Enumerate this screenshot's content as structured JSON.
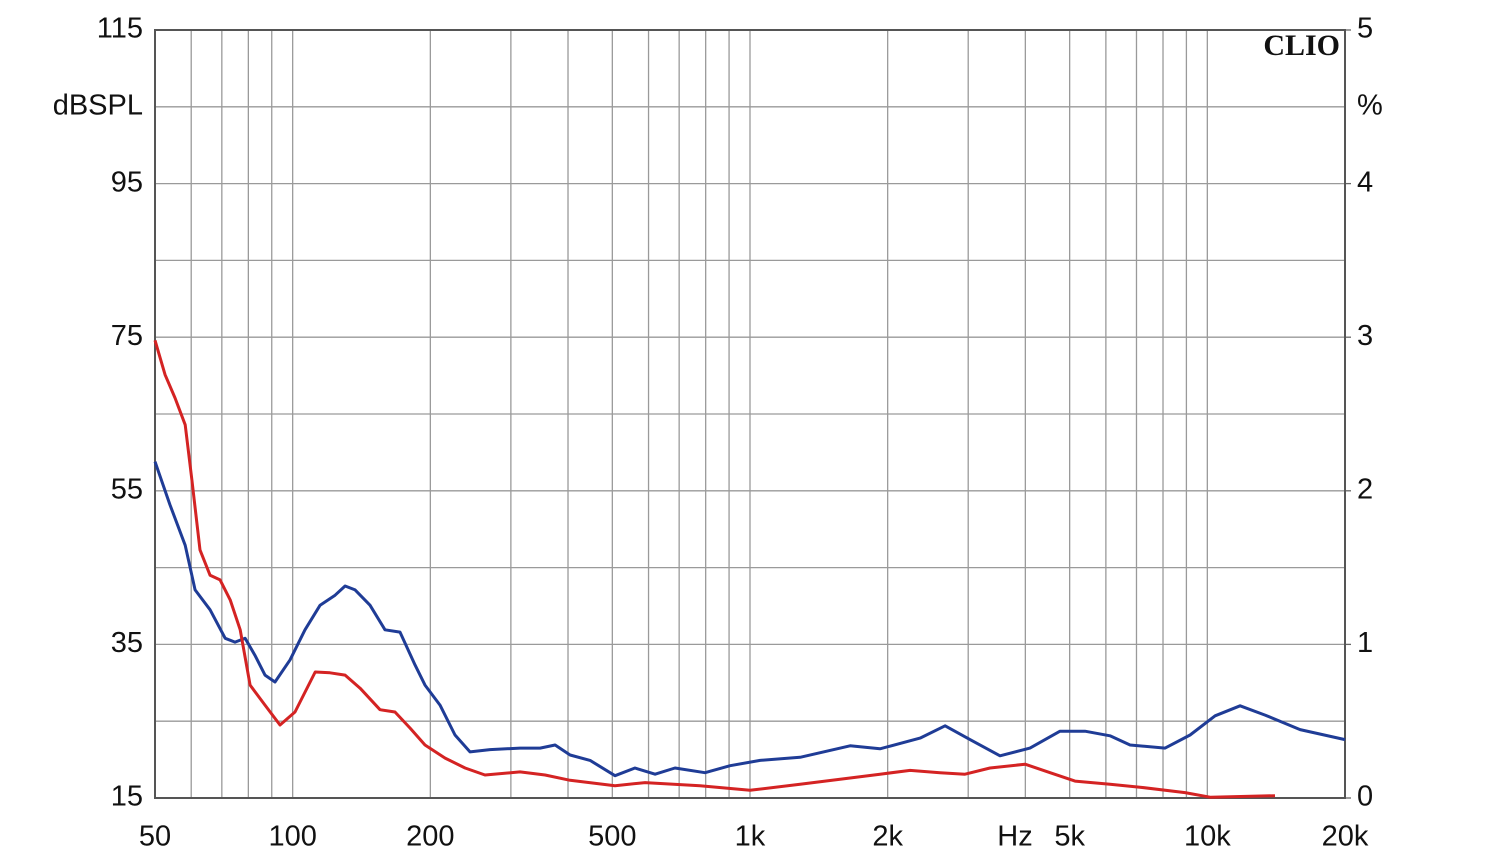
{
  "chart_data": {
    "type": "line",
    "brand": "CLIO",
    "xlabel": "Hz",
    "ylabel": "dBSPL",
    "y2label": "%",
    "xscale": "log",
    "grid": true,
    "xlim": [
      50,
      20000
    ],
    "ylim": [
      15,
      115
    ],
    "y2lim": [
      0,
      5
    ],
    "xticks": [
      50,
      100,
      200,
      500,
      {
        "value": 1000,
        "label": "1k"
      },
      {
        "value": 2000,
        "label": "2k"
      },
      {
        "value": 5000,
        "label": "5k"
      },
      {
        "value": 10000,
        "label": "10k"
      },
      {
        "value": 20000,
        "label": "20k"
      }
    ],
    "xminorticks": [
      60,
      70,
      80,
      90,
      300,
      400,
      600,
      700,
      800,
      900,
      3000,
      4000,
      6000,
      7000,
      8000,
      9000
    ],
    "yticks": [
      15,
      35,
      55,
      75,
      95,
      115
    ],
    "yminorticks": [
      25,
      45,
      65,
      85,
      105
    ],
    "y2ticks": [
      0,
      1,
      2,
      3,
      4,
      5
    ],
    "series": [
      {
        "color": "#1f3c96",
        "x": [
          50,
          53.9,
          58.2,
          61.2,
          66,
          71.2,
          74.8,
          78.7,
          82.7,
          87,
          91.5,
          98.7,
          106.4,
          114.8,
          123.8,
          130.2,
          136.9,
          147.6,
          159.2,
          171.7,
          185.2,
          194.7,
          210,
          226.4,
          244.2,
          270.1,
          314.1,
          347.5,
          374.8,
          404.2,
          447.1,
          506.8,
          560.4,
          620,
          685.6,
          797.4,
          904.6,
          1052,
          1287,
          1655,
          1924,
          2355,
          2670,
          3027,
          3521,
          4095,
          4763,
          5401,
          6127,
          6777,
          8083,
          9168,
          10399,
          11793,
          13375,
          15952,
          20000
        ],
        "values": [
          58.8,
          53.2,
          47.9,
          42.1,
          39.5,
          35.8,
          35.3,
          35.8,
          33.6,
          31.0,
          30.1,
          33.0,
          36.9,
          40.1,
          41.4,
          42.6,
          42.1,
          40.1,
          36.9,
          36.6,
          32.3,
          29.7,
          27.1,
          23.2,
          21.0,
          21.3,
          21.5,
          21.5,
          21.9,
          20.6,
          19.9,
          17.9,
          18.9,
          18.1,
          18.9,
          18.3,
          19.2,
          19.9,
          20.3,
          21.8,
          21.4,
          22.8,
          24.4,
          22.6,
          20.5,
          21.5,
          23.7,
          23.7,
          23.1,
          21.9,
          21.5,
          23.2,
          25.7,
          27.0,
          25.8,
          23.9,
          22.6
        ]
      },
      {
        "color": "#d42323",
        "x": [
          50,
          52.6,
          55.3,
          58.2,
          60.2,
          62.7,
          66,
          69.4,
          73,
          76.8,
          80.7,
          87,
          93.8,
          101.2,
          112,
          120.7,
          130.2,
          140.4,
          155.2,
          167.4,
          180.6,
          194.7,
          215.4,
          238.2,
          263.4,
          314.1,
          356.4,
          404.2,
          506.8,
          589.6,
          777.6,
          1000,
          1287,
          1655,
          1924,
          2239,
          2603,
          2952,
          3348,
          3995,
          4530,
          5137,
          6127,
          7126,
          8938,
          10138,
          14061
        ],
        "values": [
          74.6,
          70.1,
          67.1,
          63.6,
          56.4,
          47.3,
          44.0,
          43.4,
          40.8,
          36.9,
          29.7,
          27.1,
          24.5,
          26.2,
          31.4,
          31.3,
          31.0,
          29.3,
          26.5,
          26.2,
          24.1,
          21.9,
          20.2,
          18.9,
          18.0,
          18.4,
          18.0,
          17.3,
          16.6,
          17.0,
          16.6,
          16.0,
          16.8,
          17.6,
          18.1,
          18.6,
          18.3,
          18.1,
          18.9,
          19.4,
          18.3,
          17.2,
          16.8,
          16.4,
          15.7,
          15.1,
          15.3
        ]
      }
    ]
  }
}
